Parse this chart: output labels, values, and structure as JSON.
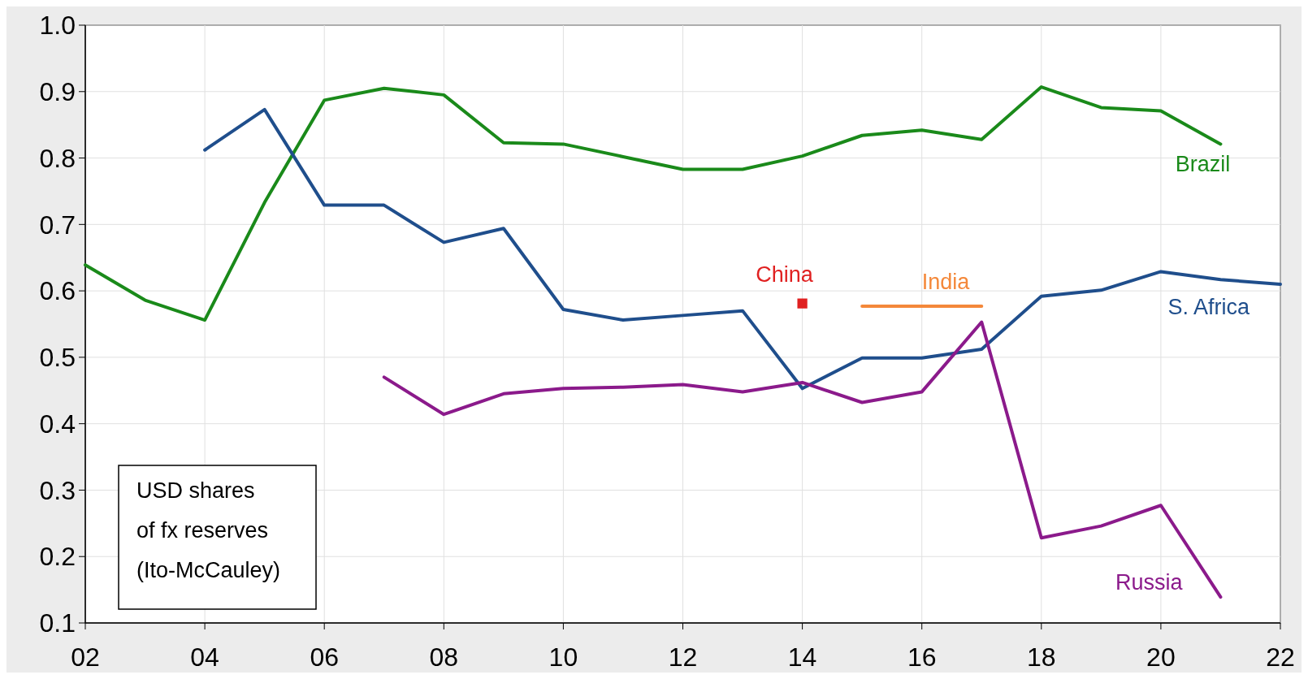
{
  "chart_data": {
    "type": "line",
    "x": [
      2002,
      2003,
      2004,
      2005,
      2006,
      2007,
      2008,
      2009,
      2010,
      2011,
      2012,
      2013,
      2014,
      2015,
      2016,
      2017,
      2018,
      2019,
      2020,
      2021,
      2022
    ],
    "series": [
      {
        "name": "Brazil",
        "color": "#1a8a1a",
        "values": [
          0.639,
          0.586,
          0.556,
          0.733,
          0.887,
          0.905,
          0.895,
          0.823,
          0.821,
          0.802,
          0.783,
          0.783,
          0.803,
          0.834,
          0.842,
          0.828,
          0.907,
          0.876,
          0.871,
          0.821,
          null
        ]
      },
      {
        "name": "S. Africa",
        "color": "#1f4e8c",
        "values": [
          null,
          null,
          0.812,
          0.873,
          0.729,
          0.729,
          0.673,
          0.694,
          0.572,
          0.556,
          0.563,
          0.57,
          0.453,
          0.499,
          0.499,
          0.512,
          0.592,
          0.601,
          0.629,
          0.617,
          0.61
        ]
      },
      {
        "name": "Russia",
        "color": "#8b1a8b",
        "values": [
          null,
          null,
          null,
          null,
          null,
          0.47,
          0.414,
          0.445,
          0.453,
          0.455,
          0.459,
          0.448,
          0.462,
          0.432,
          0.448,
          0.553,
          0.228,
          0.246,
          0.277,
          0.139,
          null
        ]
      },
      {
        "name": "China",
        "color": "#e02020",
        "type": "scatter",
        "marker": "square",
        "x": [
          2014
        ],
        "values": [
          0.581
        ]
      },
      {
        "name": "India",
        "color": "#f4883a",
        "x": [
          2015,
          2016,
          2017
        ],
        "values": [
          0.577,
          0.577,
          0.577
        ]
      }
    ],
    "xlim": [
      2002,
      2022
    ],
    "xticks": [
      {
        "value": 2002,
        "label": "02"
      },
      {
        "value": 2004,
        "label": "04"
      },
      {
        "value": 2006,
        "label": "06"
      },
      {
        "value": 2008,
        "label": "08"
      },
      {
        "value": 2010,
        "label": "10"
      },
      {
        "value": 2012,
        "label": "12"
      },
      {
        "value": 2014,
        "label": "14"
      },
      {
        "value": 2016,
        "label": "16"
      },
      {
        "value": 2018,
        "label": "18"
      },
      {
        "value": 2020,
        "label": "20"
      },
      {
        "value": 2022,
        "label": "22"
      }
    ],
    "ylim": [
      0.1,
      1.0
    ],
    "yticks": [
      {
        "value": 0.1,
        "label": "0.1"
      },
      {
        "value": 0.2,
        "label": "0.2"
      },
      {
        "value": 0.3,
        "label": "0.3"
      },
      {
        "value": 0.4,
        "label": "0.4"
      },
      {
        "value": 0.5,
        "label": "0.5"
      },
      {
        "value": 0.6,
        "label": "0.6"
      },
      {
        "value": 0.7,
        "label": "0.7"
      },
      {
        "value": 0.8,
        "label": "0.8"
      },
      {
        "value": 0.9,
        "label": "0.9"
      },
      {
        "value": 1.0,
        "label": "1.0"
      }
    ],
    "grid": true,
    "marker": "none",
    "annotations": [
      "USD shares\nof fx reserves\n(Ito-McCauley)"
    ]
  }
}
